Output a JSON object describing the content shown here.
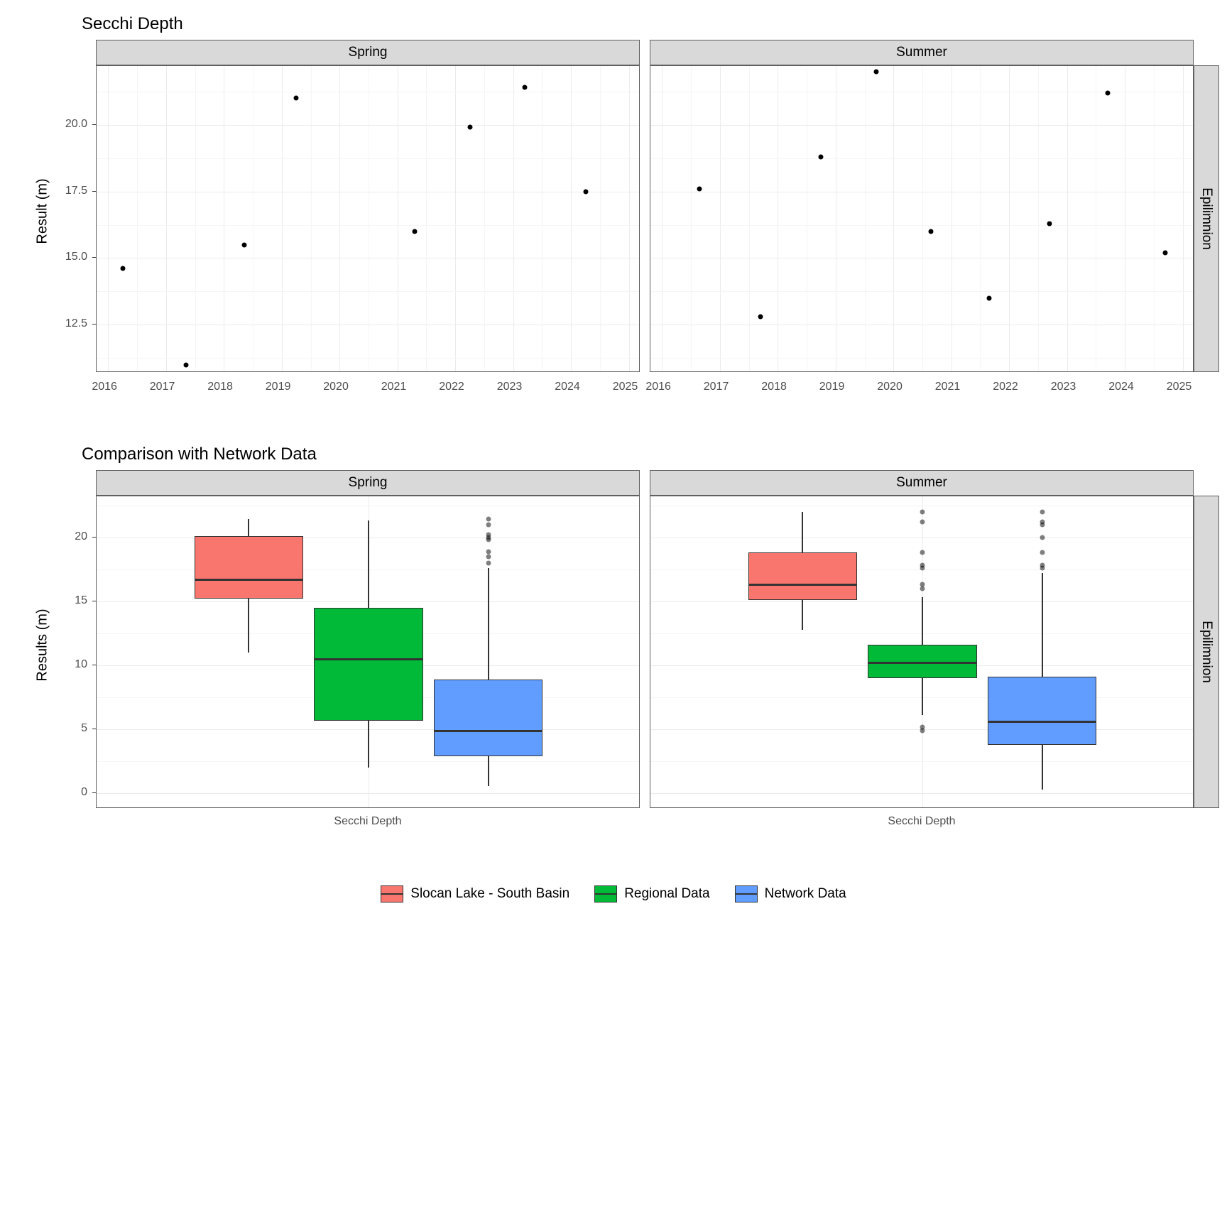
{
  "chart1": {
    "title": "Secchi Depth",
    "ylabel": "Result (m)",
    "facets": [
      "Spring",
      "Summer"
    ],
    "strip_right": "Epilimnion",
    "xlim": [
      2015.8,
      2025.2
    ],
    "xticks": [
      2016,
      2017,
      2018,
      2019,
      2020,
      2021,
      2022,
      2023,
      2024,
      2025
    ],
    "ylim": [
      10.7,
      22.2
    ],
    "yticks": [
      12.5,
      15.0,
      17.5,
      20.0
    ],
    "panel_bg": "#ffffff",
    "grid_color": "#ebebeb",
    "strip_bg": "#d9d9d9",
    "point_color": "#000000",
    "spring_points": [
      {
        "x": 2016.25,
        "y": 14.6
      },
      {
        "x": 2017.35,
        "y": 11.0
      },
      {
        "x": 2018.35,
        "y": 15.5
      },
      {
        "x": 2019.25,
        "y": 21.0
      },
      {
        "x": 2021.3,
        "y": 16.0
      },
      {
        "x": 2022.25,
        "y": 19.9
      },
      {
        "x": 2023.2,
        "y": 21.4
      },
      {
        "x": 2024.25,
        "y": 17.5
      }
    ],
    "summer_points": [
      {
        "x": 2016.65,
        "y": 17.6
      },
      {
        "x": 2017.7,
        "y": 12.8
      },
      {
        "x": 2018.75,
        "y": 18.8
      },
      {
        "x": 2019.7,
        "y": 22.0
      },
      {
        "x": 2020.65,
        "y": 16.0
      },
      {
        "x": 2021.65,
        "y": 13.5
      },
      {
        "x": 2022.7,
        "y": 16.3
      },
      {
        "x": 2023.7,
        "y": 21.2
      },
      {
        "x": 2024.7,
        "y": 15.2
      }
    ]
  },
  "chart2": {
    "title": "Comparison with Network Data",
    "ylabel": "Results (m)",
    "facets": [
      "Spring",
      "Summer"
    ],
    "strip_right": "Epilimnion",
    "xlabel": "Secchi Depth",
    "ylim": [
      -1.2,
      23.2
    ],
    "yticks": [
      0,
      5,
      10,
      15,
      20
    ],
    "colors": {
      "slocan": "#f8766d",
      "regional": "#00ba38",
      "network": "#619cff"
    },
    "spring_boxes": [
      {
        "name": "slocan",
        "q1": 15.2,
        "med": 16.7,
        "q3": 20.1,
        "lo": 11.0,
        "hi": 21.4,
        "outliers": []
      },
      {
        "name": "regional",
        "q1": 5.7,
        "med": 10.5,
        "q3": 14.5,
        "lo": 2.0,
        "hi": 21.3,
        "outliers": []
      },
      {
        "name": "network",
        "q1": 2.9,
        "med": 4.9,
        "q3": 8.9,
        "lo": 0.6,
        "hi": 17.6,
        "outliers": [
          18.0,
          18.5,
          18.9,
          19.8,
          20.0,
          20.2,
          21.0,
          21.4
        ]
      }
    ],
    "summer_boxes": [
      {
        "name": "slocan",
        "q1": 15.1,
        "med": 16.3,
        "q3": 18.8,
        "lo": 12.8,
        "hi": 22.0,
        "outliers": []
      },
      {
        "name": "regional",
        "q1": 9.0,
        "med": 10.2,
        "q3": 11.6,
        "lo": 6.1,
        "hi": 15.3,
        "outliers": [
          4.9,
          5.2,
          16.0,
          16.3,
          17.6,
          17.8,
          18.8,
          21.2,
          22.0
        ]
      },
      {
        "name": "network",
        "q1": 3.8,
        "med": 5.6,
        "q3": 9.1,
        "lo": 0.3,
        "hi": 17.2,
        "outliers": [
          17.6,
          17.8,
          18.8,
          20.0,
          21.0,
          21.2,
          22.0
        ]
      }
    ]
  },
  "legend": {
    "items": [
      {
        "label": "Slocan Lake - South Basin",
        "color": "#f8766d"
      },
      {
        "label": "Regional Data",
        "color": "#00ba38"
      },
      {
        "label": "Network Data",
        "color": "#619cff"
      }
    ]
  },
  "layout": {
    "chart1_panel_w": 766,
    "chart1_panel_h": 432,
    "chart1_gap": 14,
    "chart2_panel_w": 766,
    "chart2_panel_h": 440,
    "chart2_gap": 14,
    "left_margin": 115,
    "strip_h": 36,
    "strip_w": 36
  }
}
